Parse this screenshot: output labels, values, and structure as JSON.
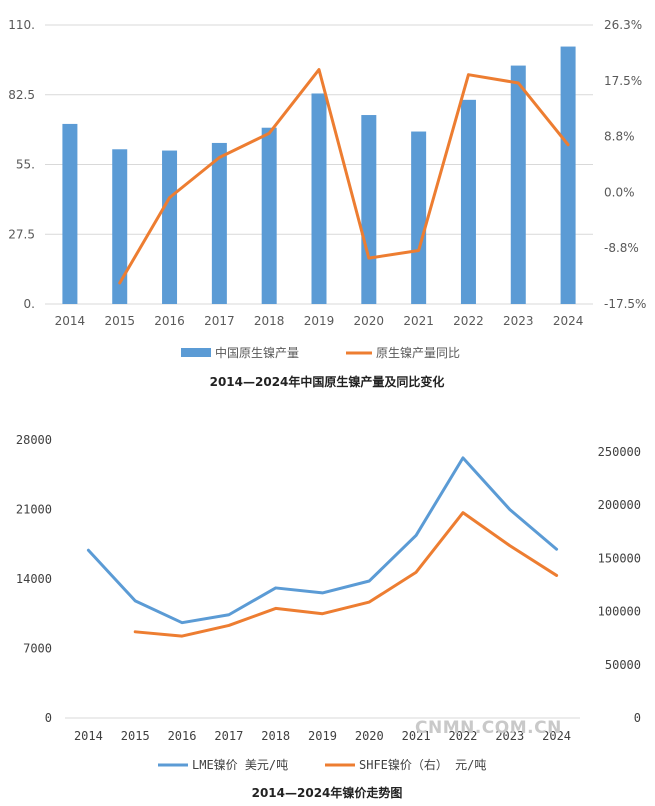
{
  "colors": {
    "bar": "#5b9bd5",
    "line": "#ed7d31",
    "lme": "#5b9bd5",
    "shfe": "#ed7d31",
    "grid": "#d9d9d9"
  },
  "chart_data": [
    {
      "type": "bar+line",
      "title": "2014—2024年中国原生镍产量及同比变化",
      "categories": [
        "2014",
        "2015",
        "2016",
        "2017",
        "2018",
        "2019",
        "2020",
        "2021",
        "2022",
        "2023",
        "2024"
      ],
      "left_ticks": [
        "0.",
        "27.5",
        "55.",
        "82.5",
        "110."
      ],
      "right_ticks": [
        "-17.5%",
        "-8.8%",
        "0.0%",
        "8.8%",
        "17.5%",
        "26.3%"
      ],
      "ylim_left": [
        0,
        110
      ],
      "ylim_right": [
        -17.5,
        26.3
      ],
      "series": [
        {
          "name": "中国原生镍产量",
          "type": "bar",
          "axis": "left",
          "values": [
            71,
            61,
            60.5,
            63.5,
            69.5,
            83,
            74.5,
            68,
            80.5,
            94,
            101.5
          ]
        },
        {
          "name": "原生镍产量同比",
          "type": "line",
          "axis": "right",
          "values": [
            null,
            -14.2,
            -0.8,
            5.5,
            9.3,
            19.3,
            -10.3,
            -9.1,
            18.5,
            17.2,
            7.5
          ]
        }
      ]
    },
    {
      "type": "line",
      "title": "2014—2024年镍价走势图",
      "categories": [
        "2014",
        "2015",
        "2016",
        "2017",
        "2018",
        "2019",
        "2020",
        "2021",
        "2022",
        "2023",
        "2024"
      ],
      "left_ticks": [
        "0",
        "7000",
        "14000",
        "21000",
        "28000"
      ],
      "right_ticks": [
        "0",
        "50000",
        "100000",
        "150000",
        "200000",
        "250000"
      ],
      "ylim_left": [
        0,
        28000
      ],
      "ylim_right": [
        0,
        250000
      ],
      "series": [
        {
          "name": "LME镍价 美元/吨",
          "axis": "left",
          "values": [
            16900,
            11800,
            9600,
            10400,
            13100,
            12600,
            13800,
            18400,
            26200,
            21000,
            17000
          ]
        },
        {
          "name": "SHFE镍价（右） 元/吨",
          "axis": "right",
          "values": [
            null,
            81000,
            77000,
            87000,
            103000,
            98000,
            109000,
            137000,
            193000,
            162000,
            134000
          ]
        }
      ]
    }
  ],
  "watermark": "CNMN.COM.CN"
}
